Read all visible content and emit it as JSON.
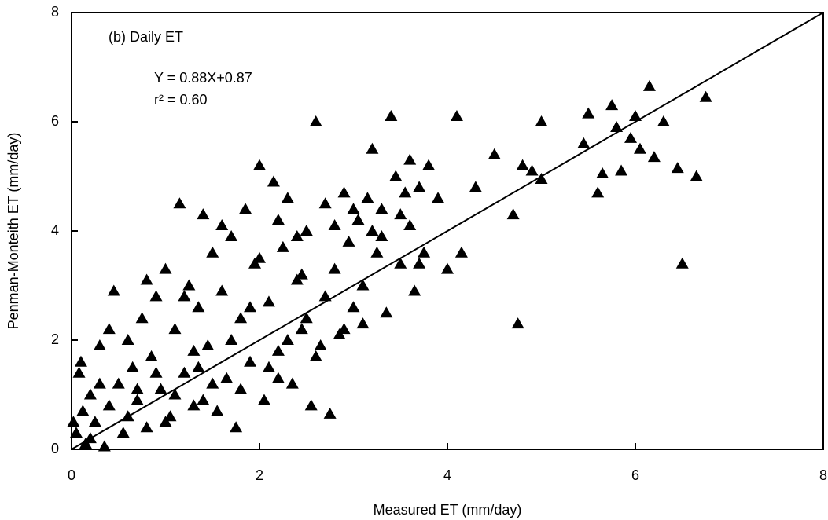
{
  "chart_data": {
    "type": "scatter",
    "color": "#000000",
    "marker": "triangle",
    "xlabel": "Measured ET (mm/day)",
    "ylabel": "Penman-Monteith ET (mm/day)",
    "annotations": [
      "(b) Daily ET",
      "Y = 0.88X+0.87",
      "r² = 0.60"
    ],
    "reference_line": {
      "x": [
        0,
        8
      ],
      "y": [
        0,
        8
      ]
    },
    "xlim": [
      0,
      8
    ],
    "ylim": [
      0,
      8
    ],
    "xticks": [
      0,
      2,
      4,
      6,
      8
    ],
    "yticks": [
      0,
      2,
      4,
      6,
      8
    ],
    "x": [
      0.05,
      0.1,
      0.08,
      0.12,
      0.15,
      0.2,
      0.25,
      0.3,
      0.35,
      0.4,
      0.45,
      0.5,
      0.55,
      0.6,
      0.65,
      0.7,
      0.75,
      0.8,
      0.85,
      0.9,
      0.95,
      1.0,
      1.05,
      1.1,
      1.15,
      1.2,
      1.25,
      1.3,
      1.35,
      1.4,
      1.45,
      1.5,
      1.55,
      1.6,
      1.65,
      1.7,
      1.75,
      1.8,
      1.85,
      1.9,
      1.95,
      2.0,
      2.05,
      2.1,
      2.15,
      2.2,
      2.25,
      2.3,
      2.35,
      2.4,
      2.45,
      2.5,
      2.55,
      2.6,
      2.65,
      2.7,
      2.75,
      2.8,
      2.85,
      2.9,
      2.95,
      3.0,
      3.05,
      3.1,
      3.15,
      3.2,
      3.25,
      3.3,
      3.35,
      3.4,
      3.45,
      3.5,
      3.55,
      3.6,
      3.65,
      3.7,
      3.75,
      3.8,
      3.9,
      4.0,
      4.1,
      4.15,
      4.3,
      4.5,
      4.7,
      4.75,
      4.8,
      4.9,
      5.0,
      5.0,
      5.45,
      5.5,
      5.6,
      5.65,
      5.75,
      5.8,
      5.85,
      5.95,
      6.0,
      6.05,
      6.15,
      6.2,
      6.3,
      6.45,
      6.5,
      6.65,
      6.75,
      0.02,
      0.3,
      0.6,
      0.9,
      1.1,
      1.3,
      1.5,
      1.7,
      1.9,
      2.1,
      2.3,
      2.5,
      2.7,
      2.9,
      3.1,
      3.3,
      3.5,
      3.7,
      0.4,
      0.8,
      1.2,
      1.6,
      2.0,
      2.2,
      2.4,
      2.8,
      3.0,
      3.2,
      1.0,
      1.4,
      1.8,
      2.2,
      2.6,
      0.2,
      0.7,
      1.35,
      2.45,
      3.6
    ],
    "values": [
      0.3,
      1.6,
      1.4,
      0.7,
      0.1,
      1.0,
      0.5,
      1.9,
      0.05,
      0.8,
      2.9,
      1.2,
      0.3,
      2.0,
      1.5,
      0.9,
      2.4,
      0.4,
      1.7,
      2.8,
      1.1,
      3.3,
      0.6,
      2.2,
      4.5,
      1.4,
      3.0,
      0.8,
      2.6,
      4.3,
      1.9,
      3.6,
      0.7,
      2.9,
      1.3,
      3.9,
      0.4,
      2.4,
      4.4,
      1.6,
      3.4,
      5.2,
      0.9,
      2.7,
      4.9,
      1.8,
      3.7,
      4.6,
      1.2,
      3.1,
      2.2,
      4.0,
      0.8,
      6.0,
      1.9,
      4.5,
      0.65,
      3.3,
      2.1,
      4.7,
      3.8,
      2.6,
      4.2,
      2.3,
      4.6,
      5.5,
      3.6,
      4.4,
      2.5,
      6.1,
      5.0,
      3.4,
      4.7,
      5.3,
      2.9,
      4.8,
      3.6,
      5.2,
      4.6,
      3.3,
      6.1,
      3.6,
      4.8,
      5.4,
      4.3,
      2.3,
      5.2,
      5.1,
      6.0,
      4.95,
      5.6,
      6.15,
      4.7,
      5.05,
      6.3,
      5.9,
      5.1,
      5.7,
      6.1,
      5.5,
      6.65,
      5.35,
      6.0,
      5.15,
      3.4,
      5.0,
      6.45,
      0.5,
      1.2,
      0.6,
      1.4,
      1.0,
      1.8,
      1.2,
      2.0,
      2.6,
      1.5,
      2.0,
      2.4,
      2.8,
      2.2,
      3.0,
      3.9,
      4.3,
      3.4,
      2.2,
      3.1,
      2.8,
      4.1,
      3.5,
      4.2,
      3.9,
      4.1,
      4.4,
      4.0,
      0.5,
      0.9,
      1.1,
      1.3,
      1.7,
      0.2,
      1.1,
      1.5,
      3.2,
      4.1
    ]
  }
}
